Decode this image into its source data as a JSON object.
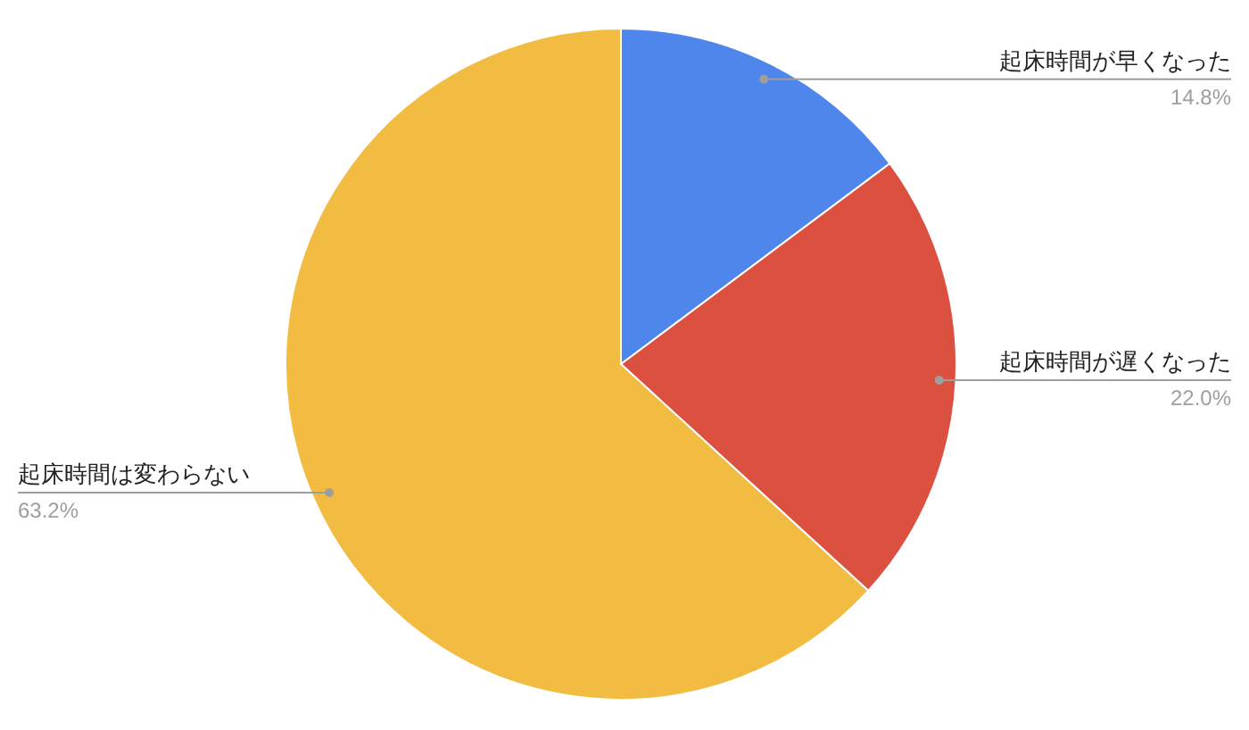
{
  "chart_data": {
    "type": "pie",
    "categories": [
      "起床時間が早くなった",
      "起床時間が遅くなった",
      "起床時間は変わらない"
    ],
    "values": [
      14.8,
      22.0,
      63.2
    ],
    "colors": [
      "#4e86ec",
      "#dc5040",
      "#f2bc42"
    ],
    "value_labels": [
      "14.8%",
      "22.0%",
      "63.2%"
    ]
  }
}
